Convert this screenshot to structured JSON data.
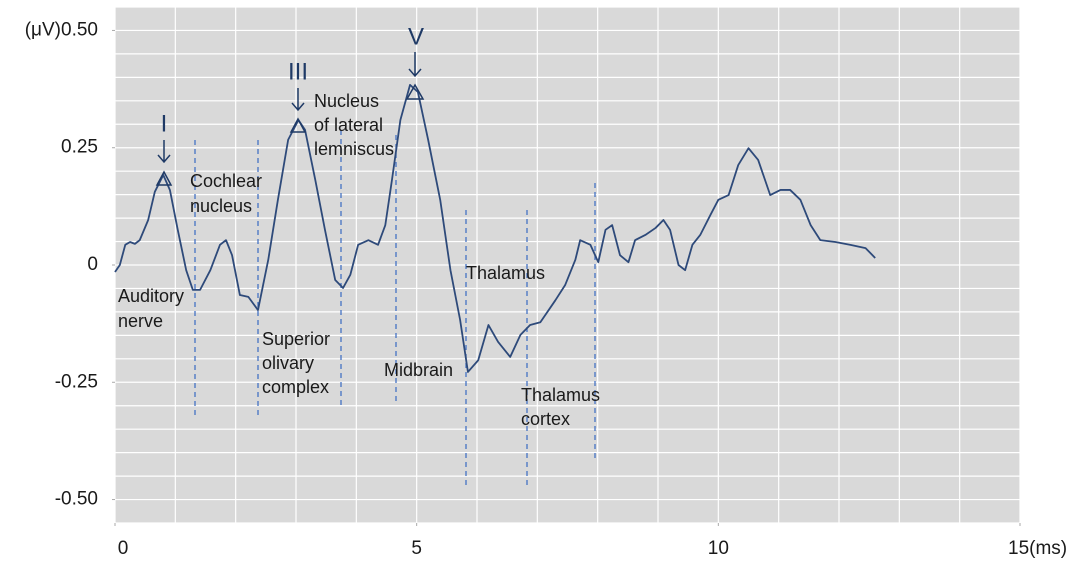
{
  "chart_data": {
    "type": "line",
    "xlim": [
      0,
      15
    ],
    "ylim": [
      -0.55,
      0.55
    ],
    "xticks": [
      0,
      5,
      10,
      {
        "value": 15,
        "label": "15(ms)"
      }
    ],
    "yticks": [
      {
        "value": 0.5,
        "label": "(μV)0.50"
      },
      0.25,
      0,
      -0.25,
      {
        "value": -0.5,
        "label": "-0.50"
      }
    ],
    "grid": true,
    "xgrid": [
      0,
      1,
      2,
      3,
      4,
      5,
      6,
      7,
      8,
      9,
      10,
      11,
      12,
      13,
      14,
      15
    ],
    "ygrid": [
      -0.55,
      -0.5,
      -0.45,
      -0.4,
      -0.35,
      -0.3,
      -0.25,
      -0.2,
      -0.15,
      -0.1,
      -0.05,
      0,
      0.05,
      0.1,
      0.15,
      0.2,
      0.25,
      0.3,
      0.35,
      0.4,
      0.45,
      0.5,
      0.55
    ],
    "color": "#2e4a7a",
    "x": [
      0,
      0.08,
      0.17,
      0.25,
      0.33,
      0.41,
      0.55,
      0.66,
      0.8,
      0.91,
      1.04,
      1.18,
      1.29,
      1.41,
      1.58,
      1.74,
      1.84,
      1.94,
      2.07,
      2.21,
      2.37,
      2.54,
      2.7,
      2.87,
      3.04,
      3.15,
      3.32,
      3.48,
      3.65,
      3.78,
      3.9,
      4.03,
      4.2,
      4.36,
      4.48,
      4.59,
      4.73,
      4.89,
      5.02,
      5.19,
      5.39,
      5.56,
      5.72,
      5.85,
      6.02,
      6.19,
      6.35,
      6.55,
      6.72,
      6.88,
      7.05,
      7.3,
      7.46,
      7.63,
      7.71,
      7.88,
      8.01,
      8.13,
      8.24,
      8.37,
      8.51,
      8.62,
      8.79,
      8.96,
      9.09,
      9.2,
      9.34,
      9.45,
      9.57,
      9.7,
      9.87,
      10,
      10.17,
      10.33,
      10.5,
      10.66,
      10.86,
      11.03,
      11.19,
      11.36,
      11.53,
      11.69,
      11.94,
      12.19,
      12.44,
      12.6
    ],
    "values": [
      -0.015,
      0,
      0.043,
      0.049,
      0.045,
      0.053,
      0.096,
      0.156,
      0.192,
      0.16,
      0.075,
      -0.011,
      -0.053,
      -0.053,
      -0.011,
      0.043,
      0.053,
      0.021,
      -0.064,
      -0.068,
      -0.096,
      0.011,
      0.139,
      0.267,
      0.309,
      0.288,
      0.181,
      0.075,
      -0.032,
      -0.049,
      -0.021,
      0.043,
      0.053,
      0.043,
      0.085,
      0.181,
      0.309,
      0.384,
      0.369,
      0.267,
      0.139,
      -0.011,
      -0.117,
      -0.228,
      -0.203,
      -0.128,
      -0.164,
      -0.196,
      -0.149,
      -0.128,
      -0.122,
      -0.075,
      -0.043,
      0.011,
      0.053,
      0.043,
      0.006,
      0.075,
      0.085,
      0.021,
      0.006,
      0.053,
      0.064,
      0.079,
      0.096,
      0.075,
      0,
      -0.011,
      0.043,
      0.064,
      0.107,
      0.139,
      0.149,
      0.213,
      0.249,
      0.224,
      0.149,
      0.16,
      0.16,
      0.139,
      0.085,
      0.053,
      0.049,
      0.043,
      0.036,
      0.015
    ],
    "peak_labels": [
      "I",
      "III",
      "V"
    ],
    "region_labels": [
      [
        "Auditory",
        "nerve"
      ],
      [
        "Cochlear",
        "nucleus"
      ],
      [
        "Superior",
        "olivary",
        "complex"
      ],
      [
        "Nucleus",
        "of lateral",
        "lemniscus"
      ],
      [
        "Midbrain"
      ],
      [
        "Thalamus"
      ],
      [
        "Thalamus",
        "cortex"
      ]
    ]
  }
}
